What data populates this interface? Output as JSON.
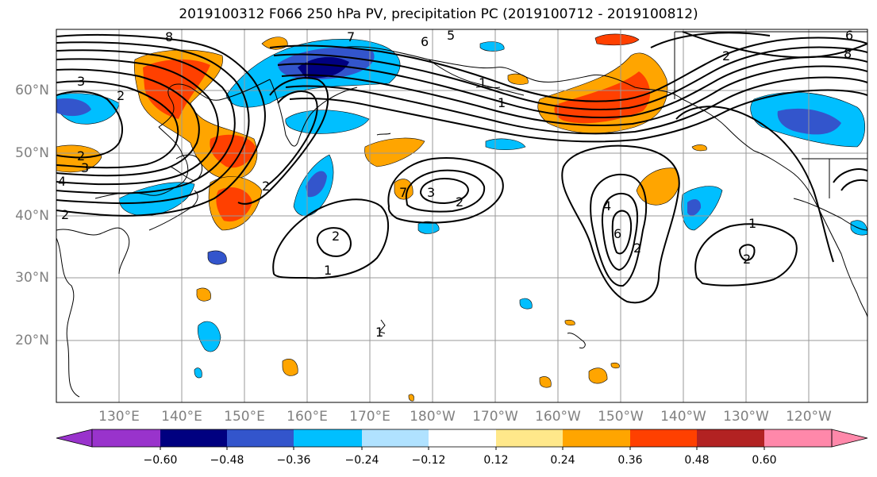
{
  "title": "2019100312 F066 250 hPa PV, precipitation PC (2019100712 - 2019100812)",
  "lat_labels": [
    "60°N",
    "50°N",
    "40°N",
    "30°N",
    "20°N"
  ],
  "lon_labels": [
    "130°E",
    "140°E",
    "150°E",
    "160°E",
    "170°E",
    "180°W",
    "170°W",
    "160°W",
    "150°W",
    "140°W",
    "130°W",
    "120°W"
  ],
  "colorbar": {
    "colors": [
      "#9933cc",
      "#000080",
      "#3355cc",
      "#00bfff",
      "#b0e2ff",
      "#ffffff",
      "#ffe88a",
      "#ffa500",
      "#ff4000",
      "#b22222",
      "#ff88aa"
    ],
    "ticks": [
      "−0.60",
      "−0.48",
      "−0.36",
      "−0.24",
      "−0.12",
      "0.12",
      "0.24",
      "0.36",
      "0.48",
      "0.60"
    ]
  },
  "contour_labels": [
    "8",
    "7",
    "6",
    "5",
    "3",
    "2",
    "3",
    "2",
    "4",
    "2",
    "7",
    "3",
    "2",
    "1",
    "2",
    "1",
    "2",
    "2",
    "6",
    "4",
    "1",
    "2",
    "1",
    "2",
    "6",
    "8",
    "1"
  ]
}
